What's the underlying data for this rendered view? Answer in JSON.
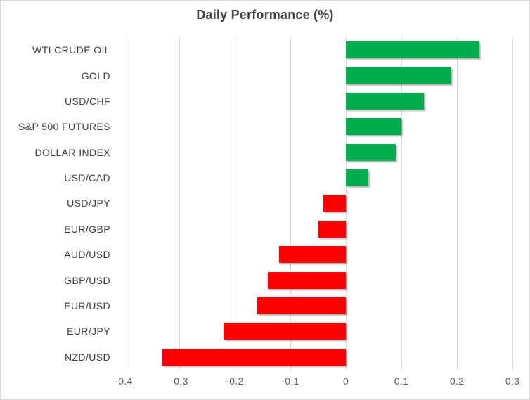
{
  "chart_data": {
    "type": "bar",
    "orientation": "horizontal",
    "title": "Daily Performance (%)",
    "categories": [
      "WTI CRUDE OIL",
      "GOLD",
      "USD/CHF",
      "S&P 500 FUTURES",
      "DOLLAR INDEX",
      "USD/CAD",
      "USD/JPY",
      "EUR/GBP",
      "AUD/USD",
      "GBP/USD",
      "EUR/USD",
      "EUR/JPY",
      "NZD/USD"
    ],
    "values": [
      0.24,
      0.19,
      0.14,
      0.1,
      0.09,
      0.04,
      -0.04,
      -0.05,
      -0.12,
      -0.14,
      -0.16,
      -0.22,
      -0.33
    ],
    "xlabel": "",
    "ylabel": "",
    "xlim": [
      -0.4,
      0.3
    ],
    "xticks": [
      {
        "label": "-0.4",
        "value": -0.4
      },
      {
        "label": "-0.3",
        "value": -0.3
      },
      {
        "label": "-0.2",
        "value": -0.2
      },
      {
        "label": "-0.1",
        "value": -0.1
      },
      {
        "label": "0",
        "value": 0
      },
      {
        "label": "0.1",
        "value": 0.1
      },
      {
        "label": "0.2",
        "value": 0.2
      },
      {
        "label": "0.3",
        "value": 0.3
      }
    ],
    "grid": true,
    "legend": false,
    "positive_color": "#00AE50",
    "negative_color": "#FF0000",
    "title_color": "#3F3F3F",
    "category_label_color": "#404040",
    "tick_label_color": "#595959",
    "gridline_color": "#D9D9D9"
  }
}
